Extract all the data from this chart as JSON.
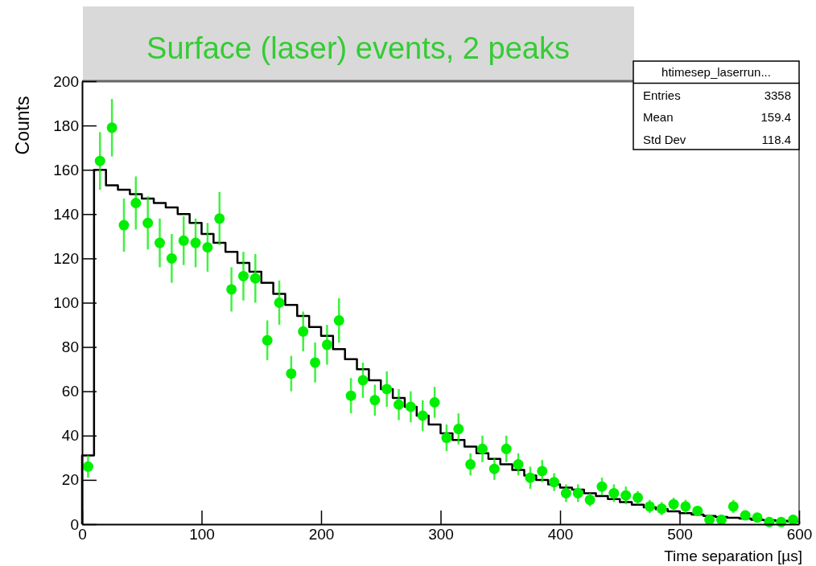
{
  "chart_data": {
    "type": "histogram",
    "title": "Surface (laser) events, 2 peaks",
    "xlabel": "Time separation [µs]",
    "ylabel": "Counts",
    "bins": [
      0,
      10,
      20,
      30,
      40,
      50,
      60,
      70,
      80,
      90,
      100,
      110,
      120,
      130,
      140,
      150,
      160,
      170,
      180,
      190,
      200,
      210,
      220,
      230,
      240,
      250,
      260,
      270,
      280,
      290,
      300,
      310,
      320,
      330,
      340,
      350,
      360,
      370,
      380,
      390,
      400,
      410,
      420,
      430,
      440,
      450,
      460,
      470,
      480,
      490,
      500,
      510,
      520,
      530,
      540,
      550,
      560,
      570,
      580,
      590,
      600
    ],
    "values": [
      31,
      160,
      153,
      151,
      149,
      147,
      145,
      143,
      140,
      136,
      131,
      127,
      123,
      118,
      114,
      109,
      104,
      99,
      94,
      89,
      85,
      79,
      74.5,
      70,
      65,
      61,
      57,
      53,
      49,
      45,
      41,
      38,
      35,
      32,
      29.5,
      27,
      24.5,
      22,
      20,
      18,
      16.5,
      15.6,
      14,
      12.7,
      11.3,
      10,
      8.8,
      7.6,
      6.8,
      5.8,
      5,
      4.4,
      3.7,
      3.3,
      2.9,
      2.5,
      2,
      1.8,
      1.5,
      1.3
    ],
    "color": "#000000",
    "series": [
      {
        "type": "scatter",
        "color": "#00ee00",
        "marker": "circle",
        "x": [
          5,
          15,
          25,
          35,
          45,
          55,
          65,
          75,
          85,
          95,
          105,
          115,
          125,
          135,
          145,
          155,
          165,
          175,
          185,
          195,
          205,
          215,
          225,
          235,
          245,
          255,
          265,
          275,
          285,
          295,
          305,
          315,
          325,
          335,
          345,
          355,
          365,
          375,
          385,
          395,
          405,
          415,
          425,
          435,
          445,
          455,
          465,
          475,
          485,
          495,
          505,
          515,
          525,
          535,
          545,
          555,
          565,
          575,
          585,
          595
        ],
        "values": [
          26,
          164,
          179,
          135,
          145,
          136,
          127,
          120,
          128,
          127,
          125,
          138,
          106,
          112,
          111,
          83,
          100,
          68,
          87,
          73,
          81,
          92,
          58,
          65,
          56,
          61,
          54,
          53,
          49,
          55,
          39,
          43,
          27,
          34,
          25,
          34,
          27,
          21,
          24,
          19,
          14,
          14,
          11,
          17,
          14,
          13,
          12,
          8,
          7,
          9,
          8,
          6,
          2,
          2,
          8,
          4,
          3,
          1,
          1,
          2
        ],
        "errors": [
          5,
          13,
          13,
          12,
          12,
          12,
          11,
          11,
          11,
          11,
          11,
          12,
          10,
          11,
          11,
          9,
          10,
          8,
          9,
          9,
          9,
          10,
          8,
          8,
          7,
          8,
          7,
          7,
          7,
          7,
          6,
          7,
          5,
          6,
          5,
          6,
          5,
          5,
          5,
          4,
          4,
          4,
          3,
          4,
          4,
          4,
          3,
          3,
          3,
          3,
          3,
          2,
          1,
          1,
          3,
          2,
          2,
          1,
          1,
          1
        ]
      }
    ],
    "xlim": [
      0,
      600
    ],
    "ylim": [
      0,
      200
    ],
    "xticks": [
      0,
      100,
      200,
      300,
      400,
      500,
      600
    ],
    "yticks": [
      0,
      20,
      40,
      60,
      80,
      100,
      120,
      140,
      160,
      180,
      200
    ],
    "annotations": [
      "htimesep_laserrun...",
      "Entries 3358",
      "Mean 159.4",
      "Std Dev 118.4"
    ]
  }
}
